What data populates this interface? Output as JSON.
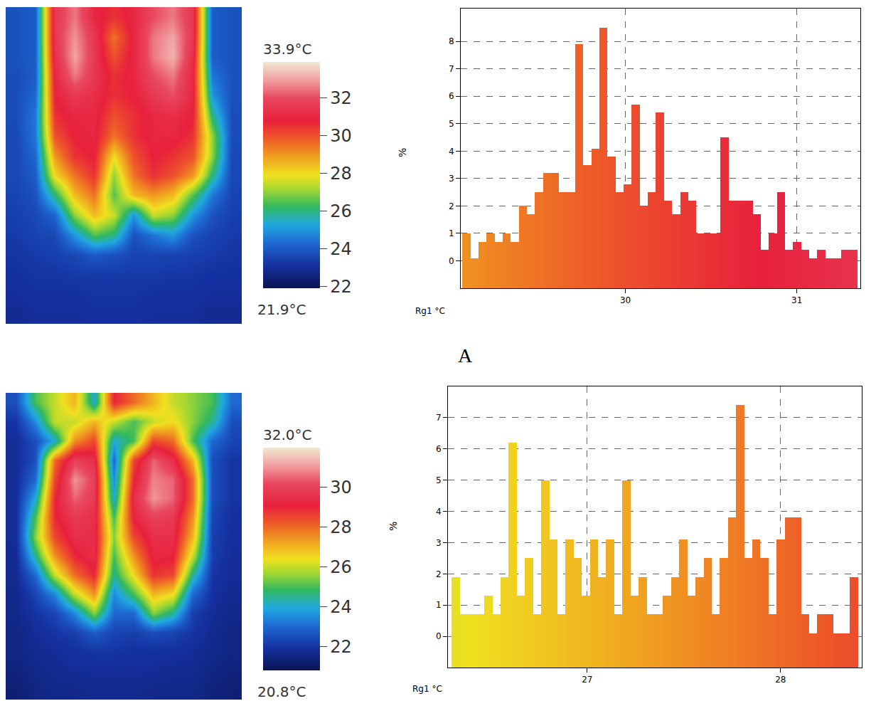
{
  "chart_data": [
    {
      "type": "heatmap",
      "tick_labels": false,
      "cells": [
        [
          23.8,
          24,
          31.5,
          32.5,
          31,
          30.5,
          31,
          32,
          32.5,
          31.5,
          24,
          23.8
        ],
        [
          23.8,
          24,
          31.5,
          32.8,
          31.5,
          29.5,
          31,
          32.5,
          33,
          31.5,
          24,
          23.8
        ],
        [
          23.8,
          24,
          31.3,
          33,
          31.5,
          30,
          31,
          32.5,
          33.2,
          31.2,
          24,
          23.8
        ],
        [
          23.7,
          24,
          31,
          32.5,
          31.5,
          30.5,
          31,
          32,
          32.5,
          31,
          24.5,
          23.8
        ],
        [
          23.7,
          24.2,
          30.8,
          31.5,
          31.2,
          30.5,
          30.8,
          31.5,
          32,
          31,
          25,
          23.8
        ],
        [
          23.7,
          24.5,
          30.5,
          31,
          31,
          30,
          30.5,
          31,
          31.2,
          30.8,
          26,
          23.7
        ],
        [
          23.6,
          24.5,
          30,
          30.8,
          31,
          29.5,
          30.5,
          31,
          31,
          30.5,
          27,
          23.7
        ],
        [
          23.6,
          24.2,
          29,
          30.5,
          30.8,
          28,
          30,
          30.8,
          30.5,
          30,
          27,
          23.6
        ],
        [
          23.6,
          24,
          28,
          29.5,
          30.5,
          27,
          29.5,
          30.5,
          30,
          29,
          26,
          23.6
        ],
        [
          23.5,
          23.8,
          26,
          28.5,
          29.5,
          26.5,
          28.5,
          29,
          28.5,
          26.5,
          24.5,
          23.5
        ],
        [
          23.4,
          23.6,
          24.2,
          27,
          28.5,
          27.5,
          25,
          27.5,
          27,
          25,
          23.8,
          23.4
        ],
        [
          23.3,
          23.5,
          23.6,
          25,
          26.5,
          26,
          23.8,
          24.5,
          25,
          23.8,
          23.5,
          23.3
        ],
        [
          23.2,
          23.3,
          23.4,
          23.6,
          24,
          23.8,
          23.5,
          23.5,
          23.5,
          23.4,
          23.3,
          23.2
        ],
        [
          23.1,
          23.2,
          23.2,
          23.3,
          23.3,
          23.3,
          23.3,
          23.3,
          23.2,
          23.2,
          23.1,
          23.1
        ],
        [
          23,
          23.1,
          23.1,
          23.1,
          23.2,
          23.2,
          23.2,
          23.1,
          23.1,
          23.1,
          23,
          23
        ],
        [
          22.9,
          23,
          23,
          23,
          23.1,
          23.1,
          23.1,
          23,
          23,
          23,
          22.9,
          22.9
        ]
      ],
      "colorbar": {
        "range": [
          21.9,
          33.9
        ],
        "ticks": [
          22,
          24,
          26,
          28,
          30,
          32
        ],
        "top_label": "33.9°C",
        "bottom_label": "21.9°C"
      }
    },
    {
      "type": "histogram",
      "xlabel": "Rg1 °C",
      "ylabel": "%",
      "annotation": "A",
      "grid": true,
      "bins": [
        29.05,
        29.097,
        29.144,
        29.191,
        29.238,
        29.285,
        29.332,
        29.379,
        29.426,
        29.473,
        29.52,
        29.567,
        29.614,
        29.661,
        29.708,
        29.755,
        29.802,
        29.849,
        29.896,
        29.943,
        29.99,
        30.037,
        30.084,
        30.131,
        30.178,
        30.225,
        30.272,
        30.319,
        30.366,
        30.413,
        30.46,
        30.507,
        30.554,
        30.601,
        30.648,
        30.695,
        30.742,
        30.789,
        30.836,
        30.883,
        30.93,
        30.977,
        31.024,
        31.071,
        31.118,
        31.165,
        31.212,
        31.259,
        31.306,
        31.353
      ],
      "values": [
        1.0,
        0.1,
        0.7,
        1.0,
        0.7,
        1.0,
        0.7,
        2.0,
        1.7,
        2.5,
        3.2,
        3.2,
        2.5,
        2.5,
        7.9,
        3.5,
        4.1,
        8.5,
        3.8,
        2.5,
        2.8,
        5.7,
        2.0,
        2.5,
        5.4,
        2.2,
        1.7,
        2.5,
        2.2,
        1.0,
        1.0,
        1.0,
        4.5,
        2.2,
        2.2,
        2.2,
        1.7,
        0.4,
        1.0,
        2.5,
        0.4,
        0.7,
        0.4,
        0.1,
        0.4,
        0.1,
        0.1,
        0.4,
        0.4
      ],
      "xlim": [
        29.04,
        31.37
      ],
      "xticks": [
        30,
        31
      ],
      "ylim": [
        -1,
        9.2
      ],
      "yticks": [
        0,
        1,
        2,
        3,
        4,
        5,
        6,
        7,
        8
      ]
    },
    {
      "type": "heatmap",
      "tick_labels": false,
      "cells": [
        [
          22.5,
          25,
          26,
          27,
          24,
          29,
          28,
          27,
          26,
          25.5,
          25,
          23
        ],
        [
          22,
          23.5,
          26,
          26,
          27,
          26,
          25,
          26,
          26.5,
          25.5,
          24.5,
          22.5
        ],
        [
          21.8,
          22.5,
          24,
          27.5,
          28.5,
          24,
          25,
          28.5,
          28,
          25,
          23,
          22.3
        ],
        [
          21.8,
          22.5,
          28,
          30,
          29.5,
          23,
          28.5,
          30.5,
          29.5,
          27,
          22.5,
          22
        ],
        [
          21.8,
          23,
          28.5,
          31,
          30,
          23.5,
          29,
          30.8,
          30.5,
          28,
          22.5,
          22
        ],
        [
          21.8,
          24,
          29,
          30.5,
          29.8,
          24,
          29.5,
          31,
          30.5,
          28,
          22.5,
          22
        ],
        [
          21.8,
          25,
          29,
          29.8,
          29.5,
          25,
          29.2,
          30,
          29.8,
          27.5,
          22.3,
          21.9
        ],
        [
          21.8,
          25.5,
          28.5,
          29.5,
          29.5,
          25.5,
          28.5,
          29.5,
          29.5,
          27,
          22.2,
          21.9
        ],
        [
          21.7,
          24.5,
          27.5,
          29,
          29.5,
          25,
          27.5,
          29.3,
          29.2,
          26,
          22.2,
          21.8
        ],
        [
          21.7,
          23,
          26,
          28,
          29,
          24.5,
          26.5,
          28.8,
          28.5,
          24.5,
          22,
          21.8
        ],
        [
          21.6,
          22.3,
          23.5,
          26,
          27.5,
          23.5,
          25,
          27,
          26.5,
          23,
          21.9,
          21.7
        ],
        [
          21.6,
          22,
          22.3,
          23.5,
          25.5,
          23,
          23,
          25.5,
          24.5,
          22.2,
          21.8,
          21.6
        ],
        [
          21.5,
          21.8,
          22,
          22.2,
          22.8,
          22.3,
          22.2,
          22.5,
          22.3,
          22,
          21.7,
          21.5
        ],
        [
          21.5,
          21.7,
          21.8,
          21.9,
          22,
          22,
          21.9,
          21.9,
          21.9,
          21.8,
          21.6,
          21.5
        ],
        [
          21.4,
          21.6,
          21.7,
          21.8,
          21.8,
          21.8,
          21.8,
          21.8,
          21.7,
          21.7,
          21.5,
          21.4
        ],
        [
          21.3,
          21.5,
          21.6,
          21.6,
          21.7,
          21.7,
          21.7,
          21.6,
          21.6,
          21.6,
          21.4,
          21.3
        ]
      ],
      "colorbar": {
        "range": [
          20.8,
          32.0
        ],
        "ticks": [
          22,
          24,
          26,
          28,
          30
        ],
        "top_label": "32.0°C",
        "bottom_label": "20.8°C"
      }
    },
    {
      "type": "histogram",
      "xlabel": "Rg1 °C",
      "ylabel": "%",
      "grid": true,
      "bins": [
        26.3,
        26.342,
        26.384,
        26.426,
        26.468,
        26.51,
        26.552,
        26.594,
        26.636,
        26.678,
        26.72,
        26.762,
        26.804,
        26.846,
        26.888,
        26.93,
        26.972,
        27.014,
        27.056,
        27.098,
        27.14,
        27.182,
        27.224,
        27.266,
        27.308,
        27.35,
        27.392,
        27.434,
        27.476,
        27.518,
        27.56,
        27.602,
        27.644,
        27.686,
        27.728,
        27.77,
        27.812,
        27.854,
        27.896,
        27.938,
        27.98,
        28.022,
        28.064,
        28.106,
        28.148,
        28.19,
        28.232,
        28.274,
        28.316,
        28.358,
        28.4
      ],
      "values": [
        1.9,
        0.7,
        0.7,
        0.7,
        1.3,
        0.7,
        1.9,
        6.2,
        1.3,
        2.5,
        0.7,
        5.0,
        3.1,
        0.7,
        3.1,
        2.5,
        1.3,
        3.1,
        1.9,
        3.1,
        0.7,
        5.0,
        1.3,
        1.9,
        0.7,
        0.7,
        1.3,
        1.9,
        3.1,
        1.3,
        1.9,
        2.5,
        0.7,
        2.5,
        3.8,
        7.4,
        2.5,
        3.1,
        2.5,
        0.7,
        3.1,
        3.8,
        3.8,
        0.7,
        0.1,
        0.7,
        0.7,
        0.1,
        0.1,
        1.9
      ],
      "xlim": [
        26.28,
        28.42
      ],
      "xticks": [
        27,
        28
      ],
      "ylim": [
        -1,
        8
      ],
      "yticks": [
        0,
        1,
        2,
        3,
        4,
        5,
        6,
        7
      ]
    }
  ]
}
